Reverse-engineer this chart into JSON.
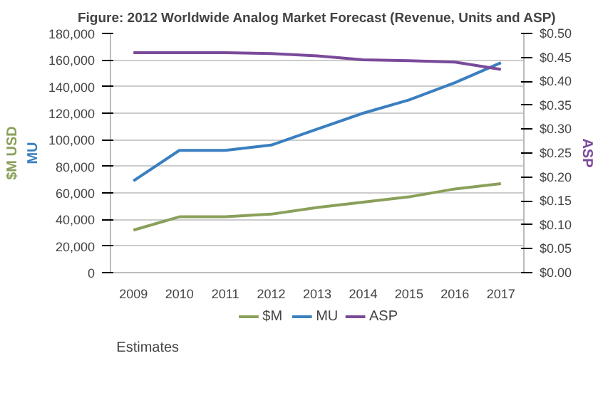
{
  "chart_data": {
    "type": "line",
    "title": "Figure: 2012 Worldwide Analog Market Forecast (Revenue, Units and ASP)",
    "ylabel": "MU",
    "y2label": "ASP",
    "annotations": [
      "$M USD",
      "Estimates"
    ],
    "categories": [
      "2009",
      "2010",
      "2011",
      "2012",
      "2013",
      "2014",
      "2015",
      "2016",
      "2017"
    ],
    "series": [
      {
        "name": "$M",
        "color": "#8aa05a",
        "values": [
          32000,
          42000,
          42000,
          44000,
          49000,
          53000,
          57000,
          63000,
          67000
        ]
      },
      {
        "name": "MU",
        "color": "#3a7fc0",
        "values": [
          69000,
          92000,
          92000,
          96000,
          108000,
          120000,
          130000,
          143000,
          158000
        ]
      },
      {
        "name": "ASP",
        "color": "#7a4a9a",
        "axis": "y2",
        "values": [
          0.46,
          0.46,
          0.46,
          0.458,
          0.453,
          0.445,
          0.443,
          0.44,
          0.425
        ]
      }
    ],
    "ylim": [
      0,
      180000
    ],
    "yticks": [
      {
        "value": 0,
        "label": "0"
      },
      {
        "value": 20000,
        "label": "20,000"
      },
      {
        "value": 40000,
        "label": "40,000"
      },
      {
        "value": 60000,
        "label": "60,000"
      },
      {
        "value": 80000,
        "label": "80,000"
      },
      {
        "value": 100000,
        "label": "100,000"
      },
      {
        "value": 120000,
        "label": "120,000"
      },
      {
        "value": 140000,
        "label": "140,000"
      },
      {
        "value": 160000,
        "label": "160,000"
      },
      {
        "value": 180000,
        "label": "180,000"
      }
    ],
    "y2lim": [
      0,
      0.5
    ],
    "y2ticks": [
      {
        "value": 0,
        "label": "$0.00"
      },
      {
        "value": 0.05,
        "label": "$0.05"
      },
      {
        "value": 0.1,
        "label": "$0.10"
      },
      {
        "value": 0.15,
        "label": "$0.15"
      },
      {
        "value": 0.2,
        "label": "$0.20"
      },
      {
        "value": 0.25,
        "label": "$0.25"
      },
      {
        "value": 0.3,
        "label": "$0.30"
      },
      {
        "value": 0.35,
        "label": "$0.35"
      },
      {
        "value": 0.4,
        "label": "$0.40"
      },
      {
        "value": 0.45,
        "label": "$0.45"
      },
      {
        "value": 0.5,
        "label": "$0.50"
      }
    ],
    "grid": "y",
    "legend": "bottom",
    "marker": "none",
    "line_style": "solid"
  }
}
